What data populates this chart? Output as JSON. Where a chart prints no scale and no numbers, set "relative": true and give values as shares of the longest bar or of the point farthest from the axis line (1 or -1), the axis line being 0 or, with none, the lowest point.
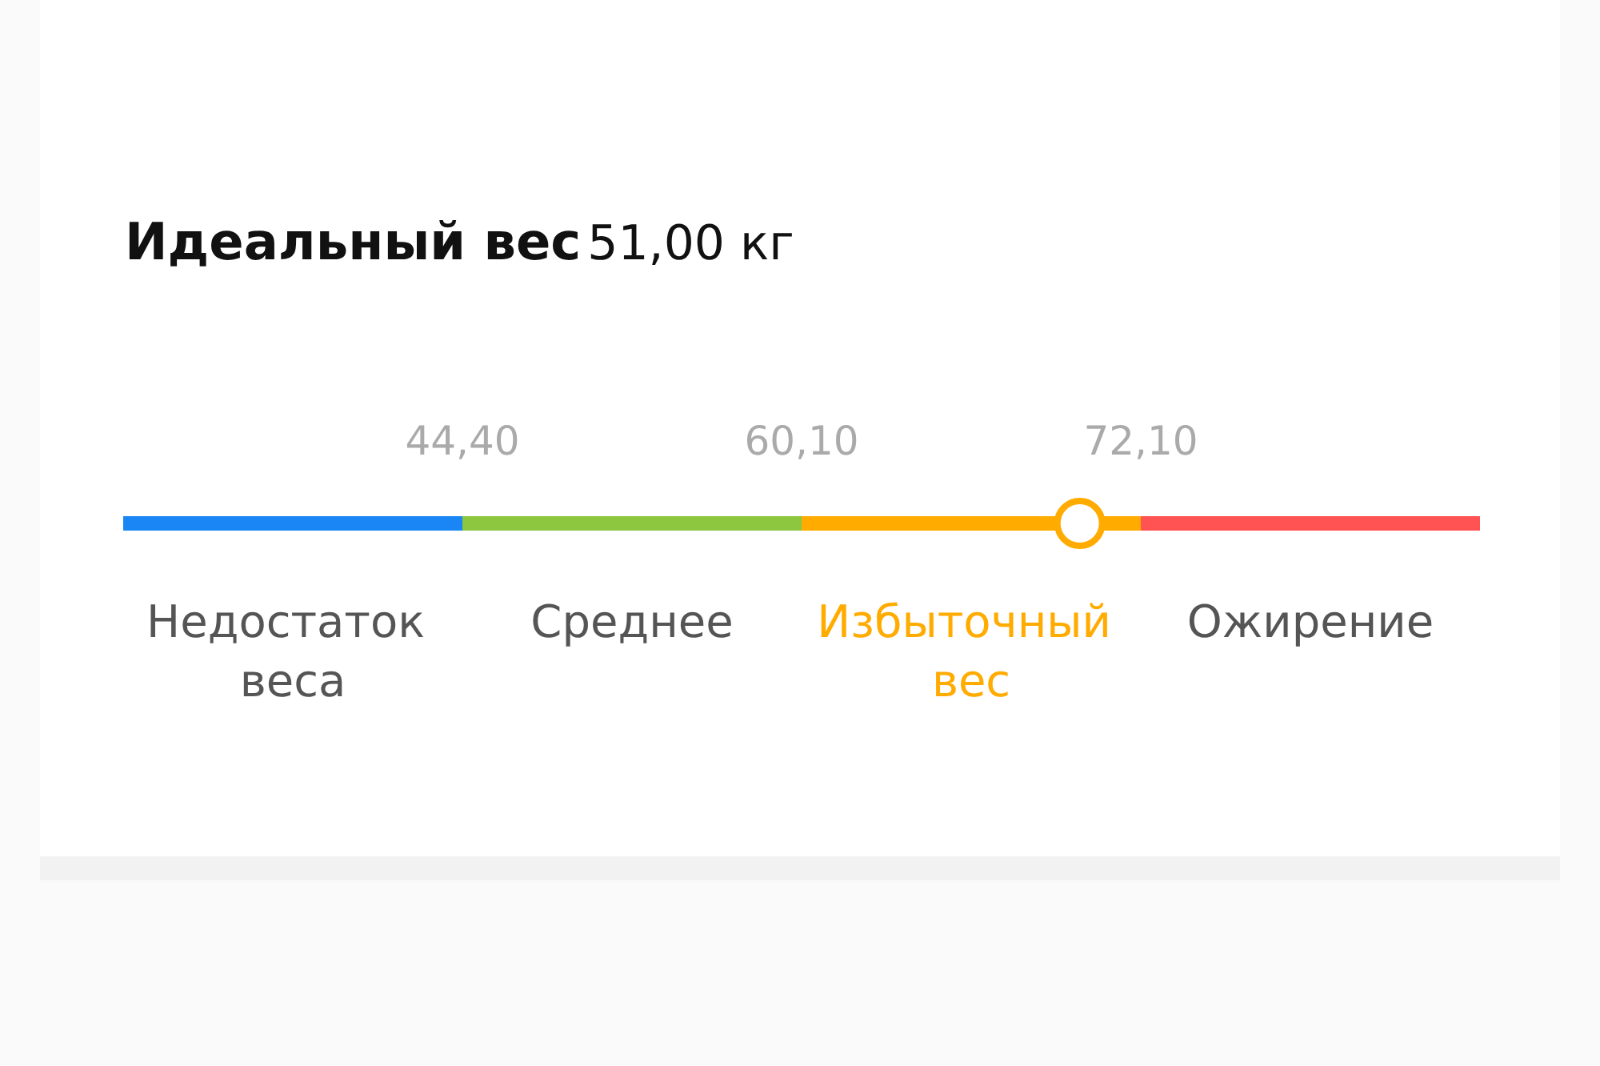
{
  "chart_data": {
    "type": "bar",
    "orientation": "horizontal",
    "stacked": true,
    "relative": true,
    "title": "Идеальный вес",
    "subtitle": "51,00 кг",
    "categories": [
      null
    ],
    "series": [
      {
        "name": "Недостаток веса",
        "color": "#1a86f5",
        "values": [
          0.25
        ]
      },
      {
        "name": "Среднее",
        "color": "#8dc63f",
        "values": [
          0.25
        ]
      },
      {
        "name": "Избыточный вес",
        "color": "#ffab00",
        "values": [
          0.25
        ]
      },
      {
        "name": "Ожирение",
        "color": "#ff5252",
        "values": [
          0.25
        ]
      }
    ],
    "annotations": [
      "44,40",
      "60,10",
      "72,10"
    ]
  }
}
